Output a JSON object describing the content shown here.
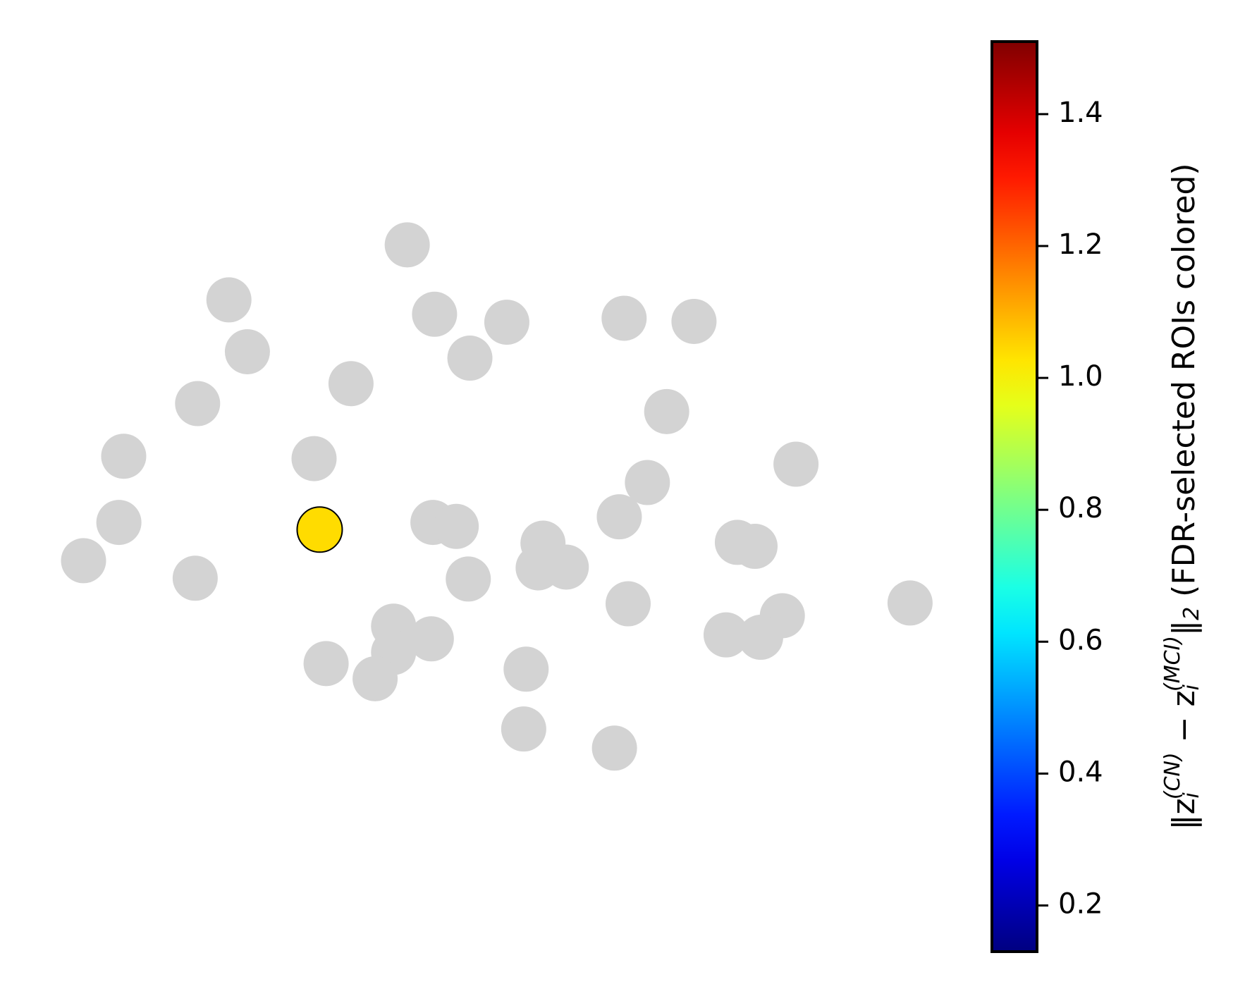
{
  "chart_data": {
    "type": "scatter",
    "x": [
      507,
      285,
      541,
      631,
      777,
      864,
      308,
      585,
      437,
      246,
      830,
      154,
      391,
      991,
      806,
      148,
      398,
      539,
      568,
      771,
      676,
      918,
      940,
      104,
      670,
      705,
      243,
      583,
      782,
      1133,
      490,
      974,
      537,
      490,
      904,
      947,
      406,
      467,
      655,
      652,
      765
    ],
    "y": [
      933,
      864,
      846,
      836,
      841,
      837,
      799,
      791,
      759,
      734,
      724,
      668,
      665,
      658,
      635,
      585,
      576,
      585,
      580,
      592,
      559,
      560,
      555,
      537,
      528,
      529,
      515,
      514,
      483,
      484,
      455,
      468,
      439,
      422,
      444,
      441,
      408,
      389,
      401,
      326,
      302
    ],
    "c": [
      null,
      null,
      null,
      null,
      null,
      null,
      null,
      null,
      null,
      null,
      null,
      null,
      null,
      null,
      null,
      null,
      1.04,
      null,
      null,
      null,
      null,
      null,
      null,
      null,
      null,
      null,
      null,
      null,
      null,
      null,
      null,
      null,
      null,
      null,
      null,
      null,
      null,
      null,
      null,
      null,
      null
    ],
    "xlim": [
      0,
      1550
    ],
    "ylim": [
      0,
      1240
    ],
    "unselected_color": "#d3d3d3",
    "cmap": "jet",
    "clim": [
      0.13,
      1.51
    ],
    "cticks": [
      0.2,
      0.4,
      0.6,
      0.8,
      1.0,
      1.2,
      1.4
    ],
    "colorbar_label": [
      "‖z",
      "i",
      "(CN)",
      " − z",
      "i",
      "(MCI)",
      "‖",
      "2",
      " (FDR-selected ROIs colored)"
    ]
  }
}
